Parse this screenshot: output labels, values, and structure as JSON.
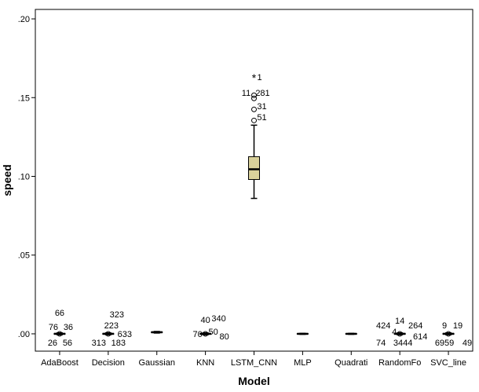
{
  "chart_data": {
    "type": "boxplot",
    "xlabel": "Model",
    "ylabel": "speed",
    "ylim": [
      -0.011,
      0.206
    ],
    "yticks": [
      0.0,
      0.05,
      0.1,
      0.15,
      0.2
    ],
    "ytick_labels": [
      ".00",
      ".05",
      ".10",
      ".15",
      ".20"
    ],
    "grid": false,
    "legend": "none",
    "box_color": "#d9d19b",
    "categories": [
      "AdaBoost",
      "Decision",
      "Gaussian",
      "KNN",
      "LSTM_CNN",
      "MLP",
      "Quadrati",
      "RandomFo",
      "SVC_line"
    ],
    "boxes": [
      {
        "q1": -0.0003,
        "median": 0.0,
        "q3": 0.0003,
        "whisker_low": -0.0006,
        "whisker_high": 0.0006
      },
      {
        "q1": -0.0003,
        "median": 0.0,
        "q3": 0.0003,
        "whisker_low": -0.0006,
        "whisker_high": 0.0006
      },
      {
        "q1": 0.0007,
        "median": 0.001,
        "q3": 0.0013,
        "whisker_low": 0.0005,
        "whisker_high": 0.0015
      },
      {
        "q1": -0.0003,
        "median": 0.0,
        "q3": 0.0003,
        "whisker_low": -0.0006,
        "whisker_high": 0.0006
      },
      {
        "q1": 0.098,
        "median": 0.1045,
        "q3": 0.1125,
        "whisker_low": 0.086,
        "whisker_high": 0.1325
      },
      {
        "q1": -0.0002,
        "median": 0.0,
        "q3": 0.0002,
        "whisker_low": -0.0003,
        "whisker_high": 0.0003
      },
      {
        "q1": -0.0002,
        "median": 0.0,
        "q3": 0.0002,
        "whisker_low": -0.0003,
        "whisker_high": 0.0003
      },
      {
        "q1": -0.0003,
        "median": 0.0,
        "q3": 0.0003,
        "whisker_low": -0.0006,
        "whisker_high": 0.0006
      },
      {
        "q1": -0.0003,
        "median": 0.0,
        "q3": 0.0003,
        "whisker_low": -0.0006,
        "whisker_high": 0.0006
      }
    ],
    "outliers": [
      {
        "category": 4,
        "value": 0.1625,
        "marker": "star"
      },
      {
        "category": 4,
        "value": 0.1515,
        "marker": "circle"
      },
      {
        "category": 4,
        "value": 0.1495,
        "marker": "circle"
      },
      {
        "category": 4,
        "value": 0.1425,
        "marker": "circle"
      },
      {
        "category": 4,
        "value": 0.1355,
        "marker": "circle"
      },
      {
        "category": 0,
        "value": 0.0,
        "marker": "circle"
      },
      {
        "category": 1,
        "value": 0.0,
        "marker": "circle"
      },
      {
        "category": 3,
        "value": 0.0,
        "marker": "circle"
      },
      {
        "category": 7,
        "value": 0.0,
        "marker": "circle"
      },
      {
        "category": 8,
        "value": 0.0,
        "marker": "circle"
      }
    ],
    "outlier_labels": [
      {
        "category": 0,
        "text": "66",
        "dx": 0,
        "dy": -27
      },
      {
        "category": 0,
        "text": "76",
        "dx": -8,
        "dy": -9
      },
      {
        "category": 0,
        "text": "36",
        "dx": 11,
        "dy": -9
      },
      {
        "category": 0,
        "text": "26",
        "dx": -9,
        "dy": 11
      },
      {
        "category": 0,
        "text": "56",
        "dx": 10,
        "dy": 11
      },
      {
        "category": 1,
        "text": "323",
        "dx": 11,
        "dy": -25
      },
      {
        "category": 1,
        "text": "223",
        "dx": 4,
        "dy": -11
      },
      {
        "category": 1,
        "text": "633",
        "dx": 21,
        "dy": 0
      },
      {
        "category": 1,
        "text": "313",
        "dx": -12,
        "dy": 11
      },
      {
        "category": 1,
        "text": "183",
        "dx": 13,
        "dy": 11
      },
      {
        "category": 3,
        "text": "40",
        "dx": 0,
        "dy": -18
      },
      {
        "category": 3,
        "text": "340",
        "dx": 17,
        "dy": -20
      },
      {
        "category": 3,
        "text": "50",
        "dx": 10,
        "dy": -3
      },
      {
        "category": 3,
        "text": "70",
        "dx": -10,
        "dy": 0
      },
      {
        "category": 3,
        "text": "80",
        "dx": 24,
        "dy": 3
      },
      {
        "category": 4,
        "text": "1",
        "dx": 7,
        "dy": -327
      },
      {
        "category": 4,
        "text": "11",
        "dx": -10,
        "dy": -307
      },
      {
        "category": 4,
        "text": "281",
        "dx": 11,
        "dy": -307
      },
      {
        "category": 4,
        "text": "31",
        "dx": 10,
        "dy": -290
      },
      {
        "category": 4,
        "text": "51",
        "dx": 10,
        "dy": -276
      },
      {
        "category": 7,
        "text": "424",
        "dx": -21,
        "dy": -11
      },
      {
        "category": 7,
        "text": "14",
        "dx": 0,
        "dy": -17
      },
      {
        "category": 7,
        "text": "264",
        "dx": 20,
        "dy": -11
      },
      {
        "category": 7,
        "text": "4",
        "dx": -7,
        "dy": -3
      },
      {
        "category": 7,
        "text": "614",
        "dx": 26,
        "dy": 3
      },
      {
        "category": 7,
        "text": "74",
        "dx": -24,
        "dy": 11
      },
      {
        "category": 7,
        "text": "3444",
        "dx": 4,
        "dy": 11
      },
      {
        "category": 8,
        "text": "9",
        "dx": -5,
        "dy": -11
      },
      {
        "category": 8,
        "text": "19",
        "dx": 12,
        "dy": -11
      },
      {
        "category": 8,
        "text": "6959",
        "dx": -5,
        "dy": 11
      },
      {
        "category": 8,
        "text": "49",
        "dx": 24,
        "dy": 11
      }
    ]
  }
}
